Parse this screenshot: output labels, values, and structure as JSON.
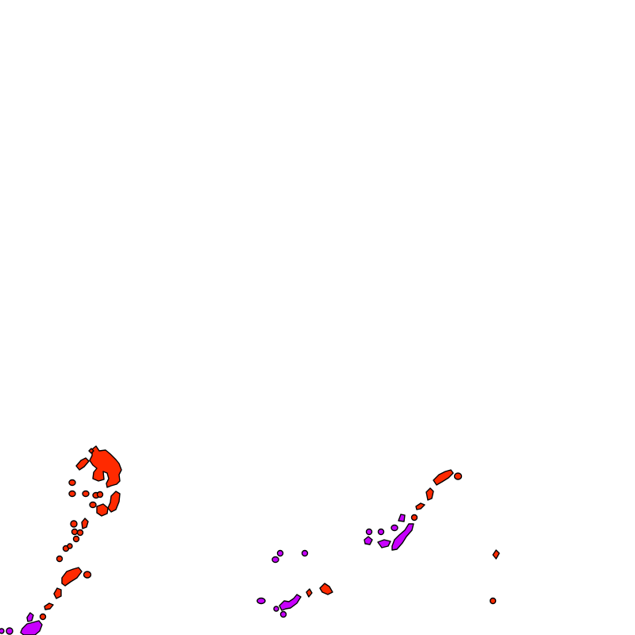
{
  "map": {
    "background_color": "#ffffff",
    "outline_color": "#000000",
    "regions": [
      {
        "name": "region-red",
        "fill_color": "#ff2a00",
        "stroke_color": "#000000"
      },
      {
        "name": "region-purple",
        "fill_color": "#c800ff",
        "stroke_color": "#000000"
      }
    ]
  }
}
